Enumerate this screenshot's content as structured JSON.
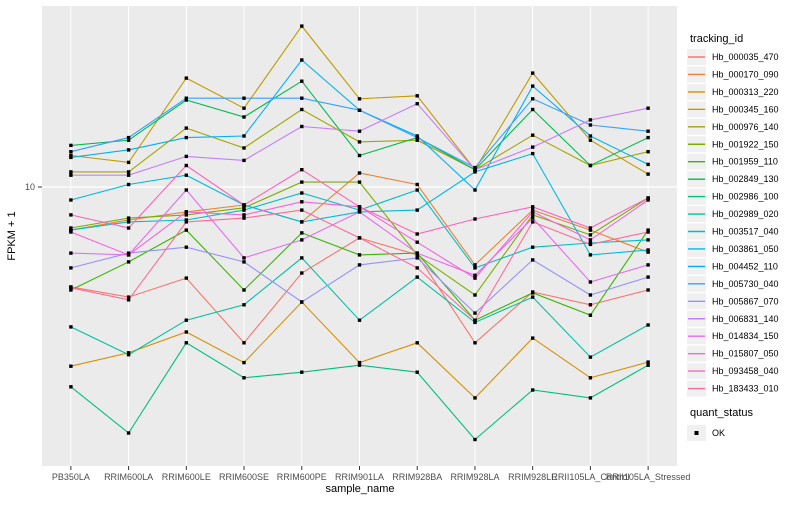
{
  "figure": {
    "background": "#FFFFFF",
    "panel_background": "#EBEBEB",
    "grid_color": "#FFFFFF",
    "axis_text_color": "#4D4D4D",
    "title_color": "#000000",
    "point_color": "#000000",
    "legend_key_background": "#F0F0F0"
  },
  "axes": {
    "xlabel": "sample_name",
    "ylabel": "FPKM + 1",
    "y_tick_label": "10"
  },
  "legend": {
    "tracking_title": "tracking_id",
    "quant_title": "quant_status",
    "quant_items": [
      {
        "label": "OK",
        "marker": "black-square"
      }
    ]
  },
  "chart_data": {
    "type": "line",
    "x_type": "categorical",
    "yscale": "log10",
    "title": "",
    "xlabel": "sample_name",
    "ylabel": "FPKM + 1",
    "yticks": [
      10
    ],
    "ylim_approx": [
      1.05,
      45
    ],
    "grid": "major-white-on-grey",
    "legend_position": "right",
    "marker": "black-square",
    "categories": [
      "PB350LA",
      "RRIM600LA",
      "RRIM600LE",
      "RRIM600SE",
      "RRIM600PE",
      "RRIM901LA",
      "RRIM928BA",
      "RRIM928LA",
      "RRIM928LE",
      "RRII105LA_Control",
      "RRII105LA_Stressed"
    ],
    "series": [
      {
        "name": "Hb_000035_470",
        "color": "#F8766D",
        "values": [
          4.46,
          4.11,
          4.79,
          2.84,
          4.99,
          6.63,
          5.78,
          2.84,
          4.28,
          3.86,
          4.35
        ]
      },
      {
        "name": "Hb_000170_090",
        "color": "#EA8331",
        "values": [
          7.06,
          7.66,
          8.18,
          8.65,
          7.54,
          11.2,
          10.2,
          5.33,
          8.3,
          7.06,
          5.91
        ]
      },
      {
        "name": "Hb_000313_220",
        "color": "#D89000",
        "values": [
          2.35,
          2.62,
          3.1,
          2.42,
          3.95,
          2.42,
          2.84,
          1.82,
          2.95,
          2.14,
          2.43
        ]
      },
      {
        "name": "Hb_000345_160",
        "color": "#C09B00",
        "values": [
          12.9,
          12.2,
          24.1,
          18.9,
          36.7,
          20.4,
          20.9,
          11.5,
          25.1,
          14.6,
          11.1
        ]
      },
      {
        "name": "Hb_000976_140",
        "color": "#A3A500",
        "values": [
          11.3,
          11.3,
          16.1,
          13.7,
          18.7,
          14.4,
          14.6,
          11.5,
          15.2,
          11.9,
          13.3
        ]
      },
      {
        "name": "Hb_001922_150",
        "color": "#7CAE00",
        "values": [
          7.18,
          7.78,
          7.98,
          8.45,
          10.4,
          10.4,
          5.78,
          4.18,
          7.98,
          6.79,
          9.15
        ]
      },
      {
        "name": "Hb_001959_110",
        "color": "#39B600",
        "values": [
          4.35,
          5.46,
          7.06,
          4.35,
          6.9,
          5.78,
          5.86,
          3.41,
          4.25,
          3.55,
          7.06
        ]
      },
      {
        "name": "Hb_002849_130",
        "color": "#00BB4E",
        "values": [
          14.0,
          14.6,
          20.2,
          17.6,
          23.5,
          12.9,
          14.9,
          11.5,
          18.7,
          11.9,
          14.9
        ]
      },
      {
        "name": "Hb_002986_100",
        "color": "#00BF7D",
        "values": [
          1.99,
          1.37,
          2.84,
          2.14,
          2.24,
          2.37,
          2.24,
          1.3,
          1.94,
          1.82,
          2.37
        ]
      },
      {
        "name": "Hb_002989_020",
        "color": "#00C1A3",
        "values": [
          3.23,
          2.58,
          3.41,
          3.86,
          5.64,
          3.41,
          4.83,
          3.35,
          4.11,
          2.53,
          3.28
        ]
      },
      {
        "name": "Hb_003517_040",
        "color": "#00BFC4",
        "values": [
          7.06,
          7.54,
          7.66,
          8.3,
          9.53,
          8.3,
          9.76,
          5.2,
          6.15,
          6.36,
          6.52
        ]
      },
      {
        "name": "Hb_003861_050",
        "color": "#00BAE0",
        "values": [
          9.0,
          10.2,
          11.0,
          8.65,
          7.54,
          8.18,
          8.3,
          11.3,
          13.1,
          5.78,
          6.01
        ]
      },
      {
        "name": "Hb_004452_110",
        "color": "#00B0F6",
        "values": [
          12.7,
          13.5,
          14.9,
          15.1,
          27.9,
          18.6,
          15.1,
          9.76,
          22.6,
          15.1,
          12.0
        ]
      },
      {
        "name": "Hb_005730_040",
        "color": "#35A2FF",
        "values": [
          13.3,
          14.9,
          20.5,
          20.5,
          20.5,
          18.6,
          14.9,
          11.7,
          20.4,
          16.5,
          15.7
        ]
      },
      {
        "name": "Hb_005867_070",
        "color": "#9590FF",
        "values": [
          5.2,
          5.86,
          6.15,
          5.46,
          3.95,
          5.33,
          5.64,
          3.61,
          5.55,
          4.18,
          4.83
        ]
      },
      {
        "name": "Hb_006831_140",
        "color": "#C77CFF",
        "values": [
          11.0,
          11.0,
          12.8,
          12.4,
          16.3,
          15.7,
          19.6,
          11.5,
          13.8,
          17.2,
          18.9
        ]
      },
      {
        "name": "Hb_014834_150",
        "color": "#E76BF3",
        "values": [
          5.86,
          5.78,
          9.76,
          5.64,
          6.52,
          8.18,
          5.86,
          4.9,
          7.78,
          4.64,
          5.33
        ]
      },
      {
        "name": "Hb_015807_050",
        "color": "#FA62DB",
        "values": [
          6.95,
          5.78,
          8.18,
          7.98,
          8.87,
          8.52,
          6.4,
          4.79,
          8.18,
          6.52,
          9.0
        ]
      },
      {
        "name": "Hb_093458_040",
        "color": "#FF62BC",
        "values": [
          7.98,
          7.18,
          11.9,
          8.65,
          11.5,
          8.52,
          6.84,
          7.72,
          8.52,
          7.18,
          9.15
        ]
      },
      {
        "name": "Hb_183433_010",
        "color": "#FF6A98",
        "values": [
          4.43,
          4.02,
          7.54,
          7.78,
          8.3,
          6.63,
          5.2,
          3.41,
          7.54,
          6.29,
          6.95
        ]
      }
    ]
  }
}
